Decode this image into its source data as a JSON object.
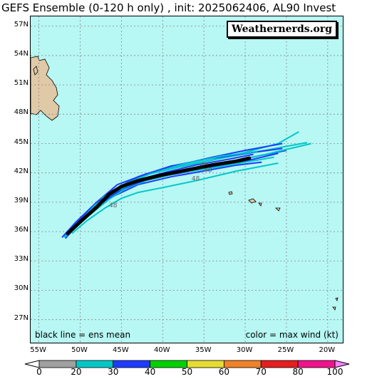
{
  "title": "GEFS Ensemble (0-120 h only) , init: 2025062406, AL90 Invest",
  "brand": "Weathernerds.org",
  "legend_left": "black line = ens mean",
  "legend_right": "color = max wind (kt)",
  "lat_labels": [
    "57N",
    "54N",
    "51N",
    "48N",
    "45N",
    "42N",
    "39N",
    "36N",
    "33N",
    "30N",
    "27N"
  ],
  "lon_labels": [
    "55W",
    "50W",
    "45W",
    "40W",
    "35W",
    "30W",
    "25W",
    "20W"
  ],
  "colorbar": {
    "ticks": [
      "0",
      "20",
      "30",
      "40",
      "50",
      "60",
      "70",
      "80",
      "100"
    ],
    "colors": [
      "#a0a0a0",
      "#00c8c8",
      "#1e3cff",
      "#00d200",
      "#e6dc32",
      "#f08228",
      "#e61e1e",
      "#f0148c",
      "#ff80ff"
    ]
  },
  "map_colors": {
    "ocean": "#b7f7f4",
    "land": "#e0c9a6",
    "grid": "#888888",
    "mean_track": "#000000"
  },
  "chart_data": {
    "type": "map-tracks",
    "lon_range": [
      -56,
      -18
    ],
    "lat_range": [
      24.5,
      58
    ],
    "ensemble_mean": {
      "lon": [
        -51.5,
        -50,
        -48,
        -46.5,
        -45,
        -43,
        -40,
        -37,
        -34,
        -31,
        -29.5
      ],
      "lat": [
        35.8,
        37,
        38.5,
        39.8,
        40.6,
        41.2,
        41.8,
        42.3,
        42.8,
        43.2,
        43.5
      ]
    },
    "members": [
      {
        "lon": [
          -52,
          -50,
          -47.5,
          -45,
          -42,
          -38,
          -34,
          -30,
          -26,
          -23.5
        ],
        "lat": [
          35.5,
          37.2,
          39,
          40.5,
          41.8,
          42.6,
          43.3,
          44.1,
          45,
          46.2
        ],
        "color": "#00c8c8"
      },
      {
        "lon": [
          -51.8,
          -49.8,
          -47,
          -44,
          -40,
          -36,
          -31,
          -27,
          -22.5
        ],
        "lat": [
          35.6,
          37.5,
          39.6,
          41.2,
          42.3,
          43,
          43.8,
          44.4,
          45.1
        ],
        "color": "#00c8c8"
      },
      {
        "lon": [
          -51.5,
          -49.5,
          -46.5,
          -43,
          -39,
          -34,
          -29,
          -25.5
        ],
        "lat": [
          35.7,
          37.6,
          40,
          41.6,
          42.7,
          43.5,
          44.1,
          44.5
        ],
        "color": "#1e3cff"
      },
      {
        "lon": [
          -51.8,
          -50.5,
          -48.5,
          -46,
          -43,
          -39,
          -35,
          -31,
          -28
        ],
        "lat": [
          35.3,
          36.5,
          38.2,
          39.6,
          40.8,
          41.6,
          42.2,
          42.8,
          43.1
        ],
        "color": "#1e3cff"
      },
      {
        "lon": [
          -51.6,
          -49.5,
          -47,
          -44,
          -41,
          -37,
          -33,
          -29,
          -26
        ],
        "lat": [
          35.6,
          37.4,
          39.2,
          40.7,
          41.5,
          42.1,
          42.7,
          43.4,
          44
        ],
        "color": "#1e3cff"
      },
      {
        "lon": [
          -51.2,
          -49,
          -46.5,
          -44.5,
          -42,
          -38,
          -34,
          -30,
          -26.5
        ],
        "lat": [
          35.9,
          37.6,
          39.3,
          40.4,
          41.2,
          42,
          42.5,
          43.1,
          43.6
        ],
        "color": "#00c8c8"
      },
      {
        "lon": [
          -51,
          -49.2,
          -47,
          -45,
          -43,
          -40,
          -36,
          -31,
          -26
        ],
        "lat": [
          35.8,
          37.1,
          38.4,
          39.4,
          40,
          40.5,
          41.2,
          42.2,
          43
        ],
        "color": "#00c8c8"
      },
      {
        "lon": [
          -52.2,
          -50.5,
          -48,
          -45.5,
          -42,
          -38,
          -34,
          -30,
          -25.5
        ],
        "lat": [
          35.4,
          37,
          39,
          40.8,
          41.9,
          42.8,
          43.6,
          44.3,
          45
        ],
        "color": "#1e3cff"
      },
      {
        "lon": [
          -51.4,
          -49.7,
          -47.5,
          -45,
          -42,
          -39,
          -35,
          -31,
          -25
        ],
        "lat": [
          35.7,
          37.3,
          38.9,
          40.3,
          41.3,
          42,
          42.6,
          43.3,
          44.3
        ],
        "color": "#1e3cff"
      },
      {
        "lon": [
          -51.3,
          -49.4,
          -47.2,
          -44.5,
          -41.5,
          -37.5,
          -33,
          -28.5
        ],
        "lat": [
          35.8,
          37.5,
          39.5,
          40.9,
          41.9,
          42.9,
          43.7,
          44.2
        ],
        "color": "#00c8c8"
      },
      {
        "lon": [
          -51.7,
          -50,
          -47.7,
          -45.3,
          -42.5,
          -39.5,
          -36,
          -32,
          -29
        ],
        "lat": [
          35.5,
          37.2,
          39.1,
          40.4,
          41.4,
          42.1,
          42.8,
          43.4,
          43.9
        ],
        "color": "#1e3cff"
      },
      {
        "lon": [
          -51.9,
          -50.2,
          -48.2,
          -45.8,
          -43,
          -39.5,
          -35.5,
          -31.5,
          -27.5,
          -22
        ],
        "lat": [
          35.4,
          36.9,
          38.7,
          40.1,
          41.1,
          41.9,
          42.5,
          43.2,
          43.9,
          45
        ],
        "color": "#00c8c8"
      }
    ],
    "hour_labels": [
      {
        "text": "48",
        "lon": -36.5,
        "lat": 41.2
      },
      {
        "text": "48",
        "lon": -35,
        "lat": 42.1
      },
      {
        "text": "48",
        "lon": -46.5,
        "lat": 38.5
      },
      {
        "text": "48",
        "lon": -35.5,
        "lat": 42.6
      }
    ]
  }
}
